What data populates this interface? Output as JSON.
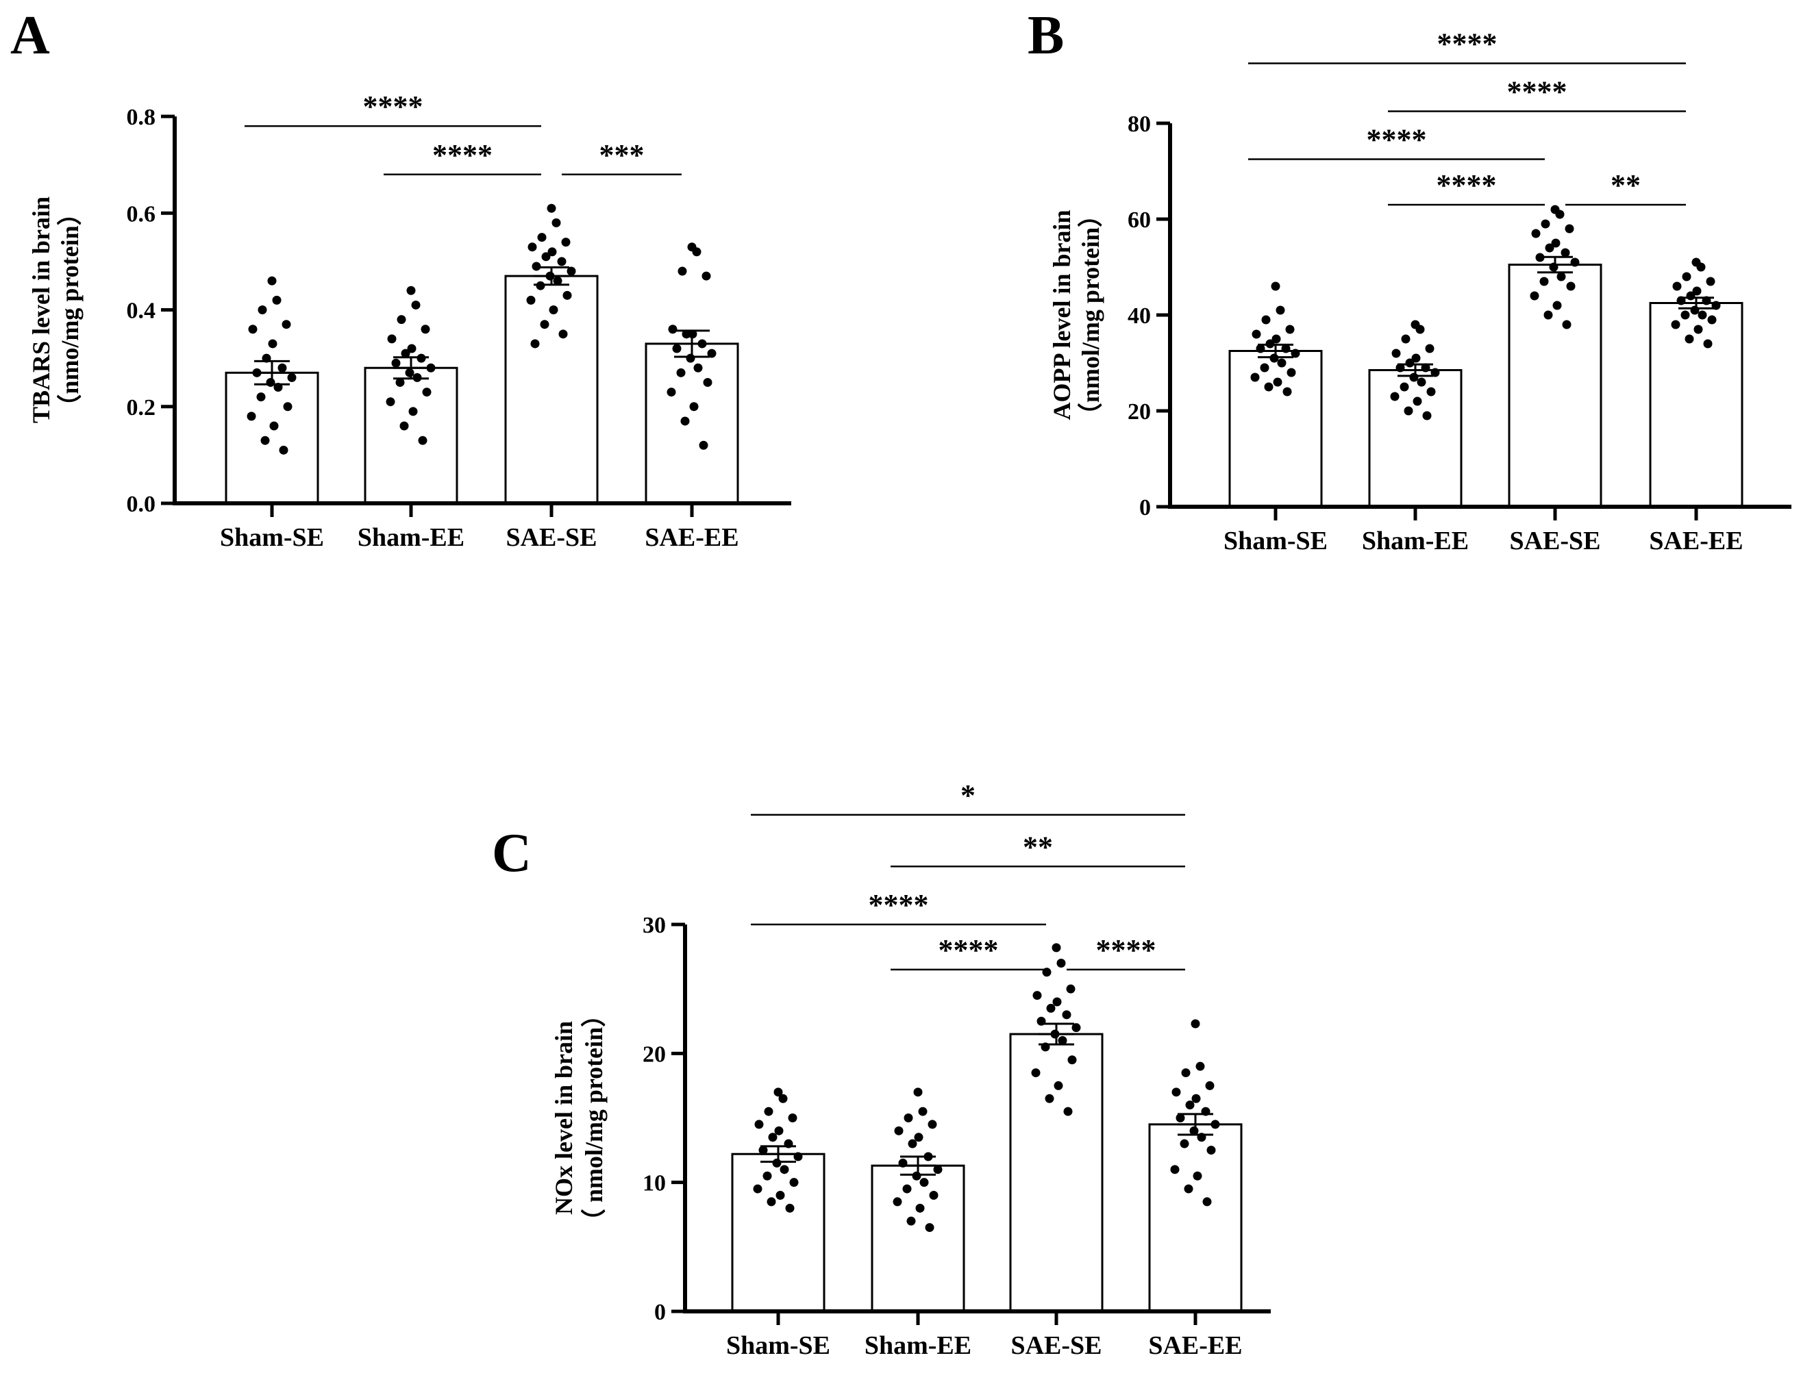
{
  "chart_data": [
    {
      "panel": "A",
      "type": "bar",
      "categories": [
        "Sham-SE",
        "Sham-EE",
        "SAE-SE",
        "SAE-EE"
      ],
      "ylabel_line1": "TBARS level in brain",
      "ylabel_line2": "（nmo/mg protein）",
      "ylim": [
        0,
        0.8
      ],
      "yticks": [
        "0.0",
        "0.2",
        "0.4",
        "0.6",
        "0.8"
      ],
      "ytick_values": [
        0,
        0.2,
        0.4,
        0.6,
        0.8
      ],
      "values": [
        0.27,
        0.28,
        0.47,
        0.33
      ],
      "sem": [
        0.024,
        0.022,
        0.018,
        0.027
      ],
      "points": [
        [
          0.46,
          0.42,
          0.4,
          0.37,
          0.36,
          0.33,
          0.3,
          0.28,
          0.27,
          0.26,
          0.25,
          0.24,
          0.22,
          0.2,
          0.18,
          0.16,
          0.13,
          0.11
        ],
        [
          0.44,
          0.41,
          0.38,
          0.36,
          0.34,
          0.32,
          0.31,
          0.3,
          0.29,
          0.28,
          0.27,
          0.26,
          0.25,
          0.23,
          0.21,
          0.19,
          0.16,
          0.13
        ],
        [
          0.61,
          0.58,
          0.55,
          0.54,
          0.53,
          0.52,
          0.51,
          0.5,
          0.49,
          0.48,
          0.47,
          0.46,
          0.45,
          0.43,
          0.42,
          0.4,
          0.37,
          0.35,
          0.33
        ],
        [
          0.53,
          0.52,
          0.48,
          0.47,
          0.36,
          0.35,
          0.35,
          0.33,
          0.32,
          0.31,
          0.3,
          0.28,
          0.27,
          0.25,
          0.23,
          0.2,
          0.17,
          0.12
        ]
      ],
      "comparisons": [
        {
          "from": 0,
          "to": 2,
          "label": "****",
          "level": 0.78
        },
        {
          "from": 1,
          "to": 2,
          "label": "****",
          "level": 0.68
        },
        {
          "from": 2,
          "to": 3,
          "label": "***",
          "level": 0.68
        }
      ]
    },
    {
      "panel": "B",
      "type": "bar",
      "categories": [
        "Sham-SE",
        "Sham-EE",
        "SAE-SE",
        "SAE-EE"
      ],
      "ylabel_line1": "AOPP level in brain",
      "ylabel_line2": "（nmol/mg protein）",
      "ylim": [
        0,
        80
      ],
      "yticks": [
        "0",
        "20",
        "40",
        "60",
        "80"
      ],
      "ytick_values": [
        0,
        20,
        40,
        60,
        80
      ],
      "values": [
        32.5,
        28.5,
        50.5,
        42.5
      ],
      "sem": [
        1.3,
        1.2,
        1.6,
        1.1
      ],
      "points": [
        [
          46,
          41,
          39,
          37,
          36,
          35,
          34,
          33,
          33,
          32,
          31,
          30,
          29,
          28,
          27,
          26,
          25,
          24
        ],
        [
          38,
          37,
          35,
          33,
          32,
          31,
          30,
          29,
          29,
          28,
          27,
          26,
          25,
          24,
          23,
          22,
          20,
          19
        ],
        [
          62,
          61,
          59,
          58,
          57,
          55,
          54,
          53,
          52,
          51,
          50,
          48,
          47,
          46,
          44,
          42,
          40,
          38
        ],
        [
          51,
          50,
          48,
          47,
          46,
          45,
          44,
          43,
          43,
          42,
          41,
          40,
          40,
          39,
          38,
          37,
          35,
          34
        ]
      ],
      "comparisons": [
        {
          "from": 0,
          "to": 3,
          "label": "****",
          "level": 92.5
        },
        {
          "from": 1,
          "to": 3,
          "label": "****",
          "level": 82.5
        },
        {
          "from": 0,
          "to": 2,
          "label": "****",
          "level": 72.5
        },
        {
          "from": 1,
          "to": 2,
          "label": "****",
          "level": 63
        },
        {
          "from": 2,
          "to": 3,
          "label": "**",
          "level": 63
        }
      ]
    },
    {
      "panel": "C",
      "type": "bar",
      "categories": [
        "Sham-SE",
        "Sham-EE",
        "SAE-SE",
        "SAE-EE"
      ],
      "ylabel_line1": "NOx level in brain",
      "ylabel_line2": "（ nmol/mg protein）",
      "ylim": [
        0,
        30
      ],
      "yticks": [
        "0",
        "10",
        "20",
        "30"
      ],
      "ytick_values": [
        0,
        10,
        20,
        30
      ],
      "values": [
        12.2,
        11.3,
        21.5,
        14.5
      ],
      "sem": [
        0.6,
        0.7,
        0.8,
        0.8
      ],
      "points": [
        [
          17.0,
          16.5,
          15.5,
          15.0,
          14.5,
          14.0,
          13.5,
          13.0,
          12.5,
          12.0,
          11.5,
          11.0,
          10.5,
          10.0,
          9.5,
          9.0,
          8.5,
          8.0
        ],
        [
          17.0,
          15.5,
          15.0,
          14.5,
          14.0,
          13.5,
          13.0,
          12.0,
          11.5,
          11.0,
          10.5,
          10.0,
          9.5,
          9.0,
          8.5,
          8.0,
          7.0,
          6.5
        ],
        [
          28.2,
          27.0,
          26.3,
          25.0,
          24.5,
          24.0,
          23.5,
          23.0,
          22.5,
          22.0,
          21.5,
          21.0,
          20.5,
          19.5,
          18.5,
          17.5,
          16.5,
          15.5
        ],
        [
          22.3,
          19.0,
          18.5,
          17.5,
          17.0,
          16.5,
          16.0,
          15.5,
          15.0,
          14.5,
          14.0,
          13.5,
          13.0,
          12.5,
          11.0,
          10.5,
          9.5,
          8.5
        ]
      ],
      "comparisons": [
        {
          "from": 0,
          "to": 3,
          "label": "*",
          "level": 38.5
        },
        {
          "from": 1,
          "to": 3,
          "label": "**",
          "level": 34.5
        },
        {
          "from": 0,
          "to": 2,
          "label": "****",
          "level": 30
        },
        {
          "from": 1,
          "to": 2,
          "label": "****",
          "level": 26.5
        },
        {
          "from": 2,
          "to": 3,
          "label": "****",
          "level": 26.5
        }
      ]
    }
  ]
}
